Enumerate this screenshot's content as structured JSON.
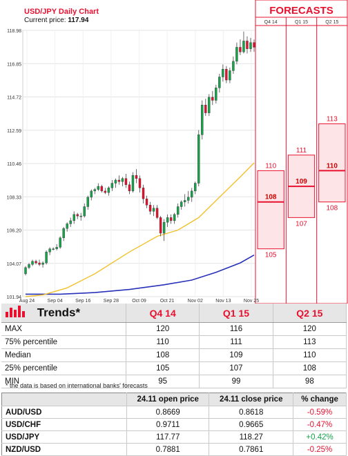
{
  "chart_data": {
    "type": "candlestick",
    "title": "USD/JPY Daily Chart",
    "current_price_label": "Current price:",
    "current_price": "117.94",
    "y_ticks": [
      "118.98",
      "116.85",
      "114.72",
      "112.59",
      "110.46",
      "108.33",
      "106.20",
      "104.07",
      "101.94"
    ],
    "ylim": [
      101.94,
      118.98
    ],
    "x_ticks": [
      "Aug 24",
      "Sep 04",
      "Sep 16",
      "Sep 28",
      "Oct 09",
      "Oct 21",
      "Nov 02",
      "Nov 13",
      "Nov 25"
    ],
    "candles": [
      [
        103.4,
        103.9,
        103.3,
        103.8
      ],
      [
        103.8,
        104.1,
        103.7,
        104.0
      ],
      [
        104.0,
        104.3,
        103.9,
        104.2
      ],
      [
        104.2,
        104.3,
        104.0,
        104.1
      ],
      [
        104.1,
        104.3,
        103.9,
        104.0
      ],
      [
        104.0,
        104.2,
        103.8,
        104.1
      ],
      [
        104.1,
        104.9,
        104.0,
        104.8
      ],
      [
        104.8,
        105.1,
        104.6,
        105.0
      ],
      [
        105.0,
        105.1,
        104.9,
        105.0
      ],
      [
        105.0,
        105.3,
        104.9,
        105.1
      ],
      [
        105.1,
        105.8,
        105.0,
        105.7
      ],
      [
        105.7,
        106.4,
        105.5,
        106.3
      ],
      [
        106.3,
        106.7,
        106.1,
        106.6
      ],
      [
        106.6,
        107.0,
        106.4,
        106.8
      ],
      [
        106.8,
        107.4,
        106.6,
        107.2
      ],
      [
        107.2,
        107.3,
        106.9,
        107.1
      ],
      [
        107.1,
        107.3,
        106.8,
        107.1
      ],
      [
        107.1,
        107.9,
        107.0,
        107.7
      ],
      [
        107.7,
        108.4,
        107.5,
        108.3
      ],
      [
        108.3,
        108.8,
        108.1,
        108.7
      ],
      [
        108.7,
        108.9,
        108.5,
        108.8
      ],
      [
        108.8,
        109.2,
        108.7,
        109.0
      ],
      [
        109.0,
        109.1,
        108.6,
        108.7
      ],
      [
        108.7,
        108.9,
        108.5,
        108.6
      ],
      [
        108.6,
        109.0,
        108.4,
        108.9
      ],
      [
        108.9,
        109.4,
        108.7,
        109.2
      ],
      [
        109.2,
        109.5,
        108.9,
        109.4
      ],
      [
        109.4,
        109.7,
        109.1,
        109.3
      ],
      [
        109.3,
        109.6,
        109.0,
        109.5
      ],
      [
        109.5,
        109.8,
        108.9,
        109.1
      ],
      [
        109.1,
        109.3,
        108.5,
        108.7
      ],
      [
        108.7,
        109.9,
        108.6,
        109.7
      ],
      [
        109.7,
        110.1,
        109.2,
        109.5
      ],
      [
        109.5,
        109.7,
        108.6,
        108.9
      ],
      [
        108.9,
        109.1,
        107.9,
        108.2
      ],
      [
        108.2,
        108.4,
        107.6,
        107.8
      ],
      [
        107.8,
        108.0,
        107.2,
        107.4
      ],
      [
        107.4,
        107.8,
        107.1,
        107.6
      ],
      [
        107.6,
        107.8,
        106.9,
        107.0
      ],
      [
        107.0,
        107.1,
        105.8,
        106.0
      ],
      [
        106.0,
        106.9,
        105.5,
        106.7
      ],
      [
        106.7,
        107.2,
        106.4,
        107.0
      ],
      [
        107.0,
        107.2,
        106.6,
        106.8
      ],
      [
        106.8,
        107.3,
        106.6,
        107.2
      ],
      [
        107.2,
        107.9,
        107.0,
        107.7
      ],
      [
        107.7,
        108.1,
        107.5,
        108.0
      ],
      [
        108.0,
        108.5,
        107.7,
        108.1
      ],
      [
        108.1,
        108.7,
        107.9,
        108.3
      ],
      [
        108.3,
        108.9,
        108.0,
        108.7
      ],
      [
        108.7,
        109.3,
        108.5,
        109.2
      ],
      [
        109.2,
        112.6,
        109.0,
        112.3
      ],
      [
        112.3,
        114.5,
        112.0,
        114.2
      ],
      [
        114.2,
        114.6,
        113.5,
        113.7
      ],
      [
        113.7,
        114.9,
        113.5,
        114.7
      ],
      [
        114.7,
        115.1,
        114.2,
        114.5
      ],
      [
        114.5,
        115.5,
        114.3,
        115.3
      ],
      [
        115.3,
        116.2,
        115.0,
        116.0
      ],
      [
        116.0,
        116.8,
        115.7,
        116.5
      ],
      [
        116.5,
        116.7,
        115.6,
        115.8
      ],
      [
        115.8,
        116.6,
        115.6,
        116.4
      ],
      [
        116.4,
        117.3,
        116.2,
        117.0
      ],
      [
        117.0,
        118.2,
        116.8,
        117.9
      ],
      [
        117.9,
        118.4,
        117.4,
        117.6
      ],
      [
        117.6,
        118.9,
        117.5,
        118.3
      ],
      [
        118.3,
        118.6,
        117.5,
        117.8
      ],
      [
        117.8,
        118.5,
        117.6,
        118.2
      ],
      [
        118.2,
        118.4,
        117.6,
        117.9
      ]
    ],
    "ma_yellow": [
      [
        0,
        101.94
      ],
      [
        5,
        102.05
      ],
      [
        12,
        102.5
      ],
      [
        20,
        103.4
      ],
      [
        30,
        104.8
      ],
      [
        38,
        105.8
      ],
      [
        44,
        106.2
      ],
      [
        50,
        107.0
      ],
      [
        56,
        108.3
      ],
      [
        62,
        109.6
      ],
      [
        66,
        110.5
      ]
    ],
    "ma_blue": [
      [
        0,
        102.1
      ],
      [
        10,
        102.1
      ],
      [
        20,
        102.2
      ],
      [
        30,
        102.4
      ],
      [
        40,
        102.7
      ],
      [
        48,
        103.0
      ],
      [
        55,
        103.5
      ],
      [
        62,
        104.1
      ],
      [
        66,
        104.6
      ]
    ],
    "forecast_header": "FORECASTS",
    "forecast_columns": [
      {
        "name": "Q4 14",
        "max": "110",
        "median": "108",
        "min": "105",
        "max_v": 110,
        "median_v": 108,
        "min_v": 105
      },
      {
        "name": "Q1 15",
        "max": "111",
        "median": "109",
        "min": "107",
        "max_v": 111,
        "median_v": 109,
        "min_v": 107
      },
      {
        "name": "Q2 15",
        "max": "113",
        "median": "110",
        "min": "108",
        "max_v": 113,
        "median_v": 110,
        "min_v": 108
      }
    ],
    "colors": {
      "up": "#16a34a",
      "down": "#e8102f",
      "ma_yellow": "#f2c12e",
      "ma_blue": "#2630b8",
      "accent": "#e8102f"
    }
  },
  "trends": {
    "title": "Trends*",
    "icon": "bar-chart-icon",
    "headers": [
      "Q4 14",
      "Q1 15",
      "Q2 15"
    ],
    "rows": [
      {
        "label": "MAX",
        "values": [
          "120",
          "116",
          "120"
        ]
      },
      {
        "label": "75% percentile",
        "values": [
          "110",
          "111",
          "113"
        ]
      },
      {
        "label": "Median",
        "values": [
          "108",
          "109",
          "110"
        ]
      },
      {
        "label": "25% percentile",
        "values": [
          "105",
          "107",
          "108"
        ]
      },
      {
        "label": "MIN",
        "values": [
          "95",
          "99",
          "98"
        ]
      }
    ]
  },
  "footnote": "* the data is based on international banks' forecasts",
  "fx_table": {
    "headers": [
      "",
      "24.11 open price",
      "24.11 close price",
      "% change"
    ],
    "rows": [
      {
        "pair": "AUD/USD",
        "open": "0.8669",
        "close": "0.8618",
        "change": "-0.59%",
        "dir": "neg"
      },
      {
        "pair": "USD/CHF",
        "open": "0.9711",
        "close": "0.9665",
        "change": "-0.47%",
        "dir": "neg"
      },
      {
        "pair": "USD/JPY",
        "open": "117.77",
        "close": "118.27",
        "change": "+0.42%",
        "dir": "pos"
      },
      {
        "pair": "NZD/USD",
        "open": "0.7881",
        "close": "0.7861",
        "change": "-0.25%",
        "dir": "neg"
      }
    ]
  }
}
